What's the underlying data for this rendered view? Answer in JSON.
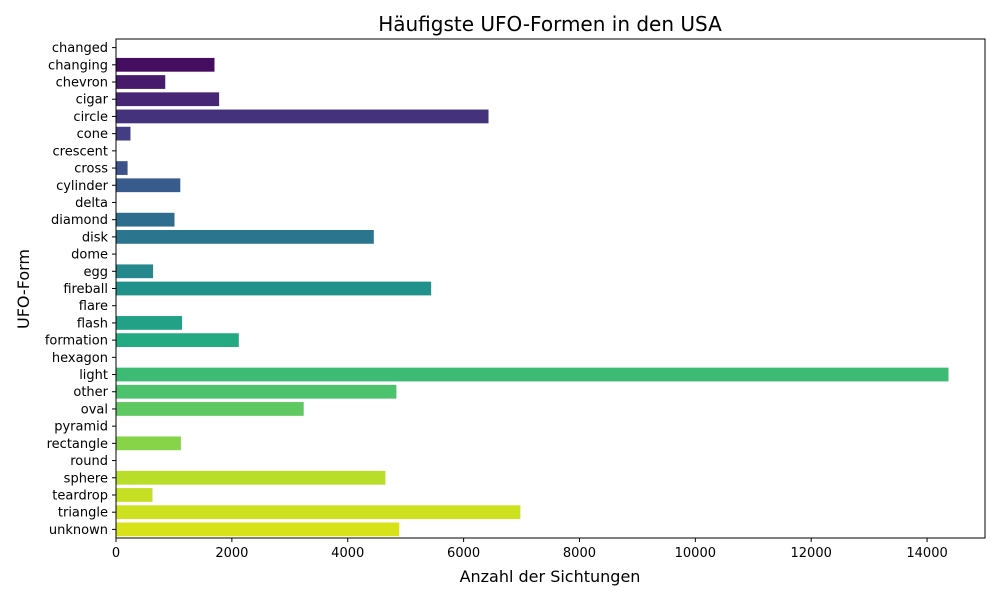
{
  "chart_data": {
    "type": "bar",
    "orientation": "horizontal",
    "title": "Häufigste UFO-Formen in den USA",
    "xlabel": "Anzahl der Sichtungen",
    "ylabel": "UFO-Form",
    "xlim": [
      0,
      15000
    ],
    "xticks": [
      0,
      2000,
      4000,
      6000,
      8000,
      10000,
      12000,
      14000
    ],
    "grid": false,
    "legend": "none",
    "palette": "viridis",
    "categories": [
      "changed",
      "changing",
      "chevron",
      "cigar",
      "circle",
      "cone",
      "crescent",
      "cross",
      "cylinder",
      "delta",
      "diamond",
      "disk",
      "dome",
      "egg",
      "fireball",
      "flare",
      "flash",
      "formation",
      "hexagon",
      "light",
      "other",
      "oval",
      "pyramid",
      "rectangle",
      "round",
      "sphere",
      "teardrop",
      "triangle",
      "unknown"
    ],
    "values": [
      1,
      1700,
      850,
      1780,
      6430,
      250,
      1,
      200,
      1110,
      1,
      1010,
      4450,
      1,
      640,
      5440,
      1,
      1140,
      2120,
      1,
      14370,
      4840,
      3240,
      1,
      1120,
      1,
      4650,
      630,
      6980,
      4890
    ],
    "colors": [
      "#440154",
      "#46085c",
      "#471063",
      "#481769",
      "#481d6f",
      "#482475",
      "#472a7a",
      "#46307e",
      "#453781",
      "#433d84",
      "#414287",
      "#3f4889",
      "#3c4d8a",
      "#3a528b",
      "#375a8c",
      "#355f8d",
      "#32648e",
      "#30698e",
      "#2e6e8e",
      "#2c738e",
      "#2a788e",
      "#287d8e",
      "#26828e",
      "#24868e",
      "#228b8d",
      "#21918c",
      "#20968b",
      "#1f9a8a",
      "#1fa088"
    ],
    "bar_colors_actual": [
      "#440154",
      "#481467",
      "#482374",
      "#463480",
      "#414487",
      "#3b528b",
      "#355e8d",
      "#31688e",
      "#2c728e",
      "#287d8e",
      "#24868e",
      "#21918c",
      "#1f9e89",
      "#22a884",
      "#2fb47c",
      "#44bf70",
      "#5ec962",
      "#7ad151",
      "#9bd93c",
      "#bddf26",
      "#d8e219",
      "#fde725",
      "#fde725",
      "#fde725",
      "#fde725",
      "#fde725",
      "#fde725",
      "#fde725",
      "#fde725"
    ]
  }
}
